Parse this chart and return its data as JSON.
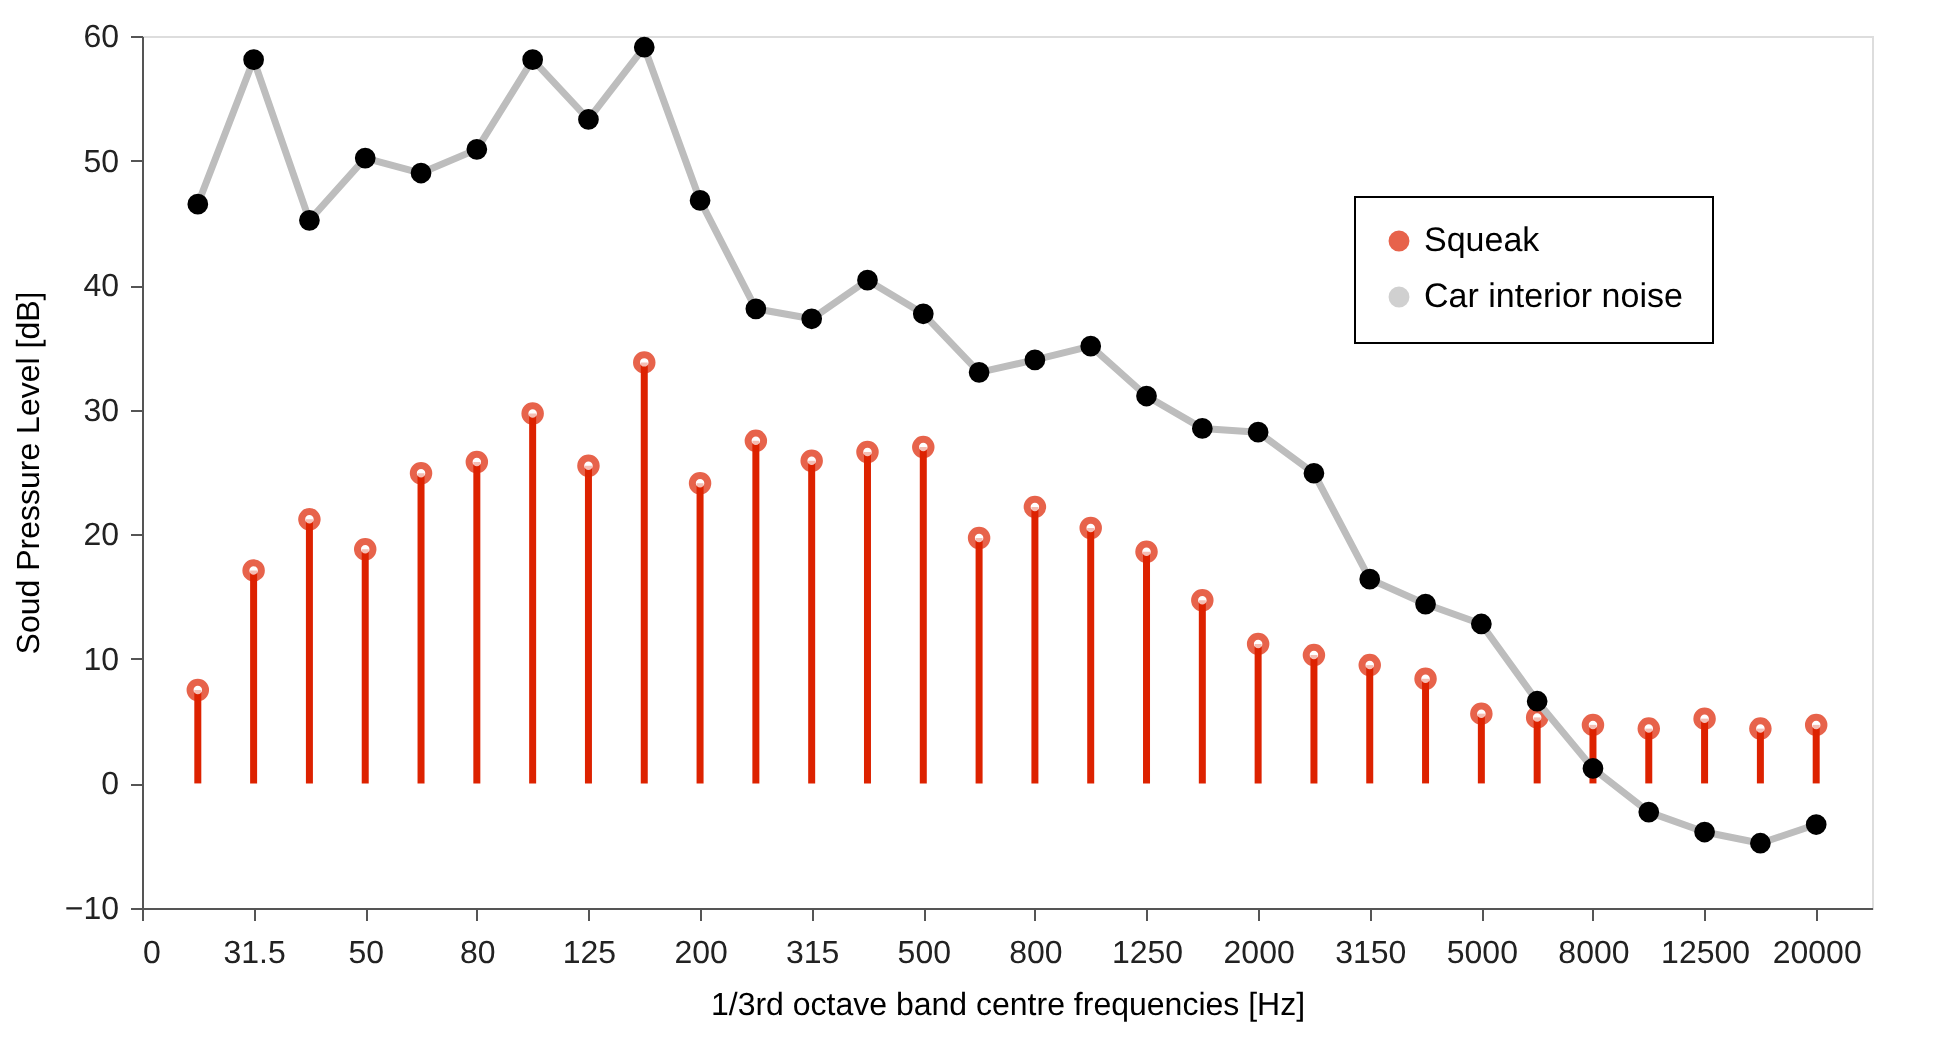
{
  "chart_data": {
    "type": "line",
    "xlabel": "1/3rd octave band centre frequencies [Hz]",
    "ylabel": "Soud Pressure Level [dB]",
    "categories": [
      "0",
      null,
      "31.5",
      null,
      "50",
      null,
      "80",
      null,
      "125",
      null,
      "200",
      null,
      "315",
      null,
      "500",
      null,
      "800",
      null,
      "1250",
      null,
      "2000",
      null,
      "3150",
      null,
      "5000",
      null,
      "8000",
      null,
      "12500",
      null,
      "20000"
    ],
    "ylim": [
      -10,
      60
    ],
    "yticks": [
      -10,
      0,
      10,
      20,
      30,
      40,
      50,
      60
    ],
    "grid": false,
    "legend": "top right",
    "series": [
      {
        "name": "Squeak",
        "type": "lollipop",
        "color": "#dd2200",
        "values": [
          null,
          7.5,
          17.1,
          21.2,
          18.8,
          24.9,
          25.8,
          29.7,
          25.5,
          33.8,
          24.1,
          27.5,
          25.9,
          26.6,
          27.0,
          19.7,
          22.2,
          20.5,
          18.6,
          14.7,
          11.2,
          10.3,
          9.5,
          8.4,
          5.6,
          5.3,
          4.7,
          4.4,
          5.2,
          4.4,
          4.7
        ]
      },
      {
        "name": "Car interior noise",
        "marker": "circle",
        "line_style": "solid",
        "color": "#bdbdbd",
        "values": [
          null,
          46.5,
          58.1,
          45.2,
          50.2,
          49.0,
          50.9,
          58.1,
          53.3,
          59.1,
          46.8,
          38.1,
          37.3,
          40.4,
          37.7,
          33.0,
          34.0,
          35.1,
          31.1,
          28.5,
          28.2,
          24.9,
          16.4,
          14.4,
          12.8,
          6.6,
          1.2,
          -2.3,
          -3.9,
          -4.8,
          -3.3
        ]
      }
    ]
  }
}
